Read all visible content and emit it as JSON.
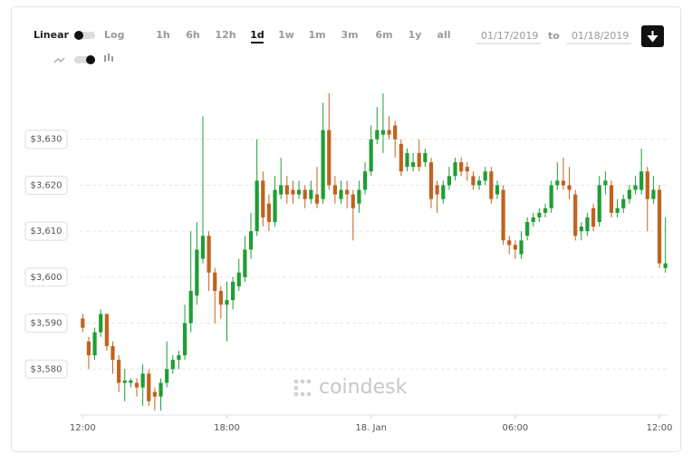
{
  "controls": {
    "scale_options": [
      "Linear",
      "Log"
    ],
    "ranges": [
      "1h",
      "6h",
      "12h",
      "1d",
      "1w",
      "1m",
      "3m",
      "6m",
      "1y",
      "all"
    ],
    "active_range": "1d",
    "date_from": "01/17/2019",
    "date_separator": "to",
    "date_to": "01/18/2019"
  },
  "watermark": "coindesk",
  "chart_data": {
    "type": "candlestick",
    "up_color": "#1e9e34",
    "down_color": "#c2621e",
    "grid": true,
    "xlim": [
      -0.5,
      97.5
    ],
    "ylim": [
      3570,
      3640
    ],
    "xticks": [
      {
        "value": 0,
        "label": "12:00"
      },
      {
        "value": 24,
        "label": "18:00"
      },
      {
        "value": 48,
        "label": "18. Jan"
      },
      {
        "value": 72,
        "label": "06:00"
      },
      {
        "value": 96,
        "label": "12:00"
      }
    ],
    "yticks": [
      {
        "value": 3580,
        "label": "$3,580"
      },
      {
        "value": 3590,
        "label": "$3,590"
      },
      {
        "value": 3600,
        "label": "$3,600"
      },
      {
        "value": 3610,
        "label": "$3,610"
      },
      {
        "value": 3620,
        "label": "$3,620"
      },
      {
        "value": 3630,
        "label": "$3,630"
      }
    ],
    "x": [
      0,
      1,
      2,
      3,
      4,
      5,
      6,
      7,
      8,
      9,
      10,
      11,
      12,
      13,
      14,
      15,
      16,
      17,
      18,
      19,
      20,
      21,
      22,
      23,
      24,
      25,
      26,
      27,
      28,
      29,
      30,
      31,
      32,
      33,
      34,
      35,
      36,
      37,
      38,
      39,
      40,
      41,
      42,
      43,
      44,
      45,
      46,
      47,
      48,
      49,
      50,
      51,
      52,
      53,
      54,
      55,
      56,
      57,
      58,
      59,
      60,
      61,
      62,
      63,
      64,
      65,
      66,
      67,
      68,
      69,
      70,
      71,
      72,
      73,
      74,
      75,
      76,
      77,
      78,
      79,
      80,
      81,
      82,
      83,
      84,
      85,
      86,
      87,
      88,
      89,
      90,
      91,
      92,
      93,
      94,
      95,
      96,
      97
    ],
    "open": [
      3591,
      3586,
      3583,
      3588,
      3592,
      3585,
      3582,
      3577,
      3577,
      3577,
      3576,
      3579,
      3575,
      3574,
      3577,
      3580,
      3582,
      3583,
      3590,
      3596,
      3604,
      3609,
      3601,
      3597,
      3594,
      3595,
      3598,
      3600,
      3606,
      3610,
      3621,
      3616,
      3612,
      3618,
      3620,
      3619,
      3618,
      3619,
      3617,
      3618,
      3617,
      3632,
      3620,
      3617,
      3619,
      3618,
      3616,
      3619,
      3623,
      3630,
      3631,
      3632,
      3633,
      3629,
      3624,
      3624,
      3627,
      3625,
      3625,
      3620,
      3617,
      3620,
      3622,
      3625,
      3624,
      3622,
      3620,
      3621,
      3623,
      3618,
      3619,
      3608,
      3607,
      3605,
      3609,
      3612,
      3613,
      3614,
      3615,
      3620,
      3621,
      3620,
      3618,
      3610,
      3610,
      3615,
      3612,
      3620,
      3620,
      3614,
      3615,
      3617,
      3619,
      3619,
      3623,
      3617,
      3619,
      3602
    ],
    "high": [
      3592,
      3587,
      3589,
      3593,
      3592,
      3586,
      3583,
      3580,
      3578,
      3578,
      3581,
      3580,
      3576,
      3578,
      3586,
      3583,
      3584,
      3594,
      3610,
      3612,
      3635,
      3610,
      3602,
      3598,
      3599,
      3600,
      3604,
      3609,
      3614,
      3630,
      3623,
      3618,
      3622,
      3626,
      3622,
      3621,
      3621,
      3620,
      3621,
      3624,
      3638,
      3640,
      3622,
      3621,
      3621,
      3619,
      3621,
      3625,
      3633,
      3637,
      3640,
      3635,
      3634,
      3630,
      3628,
      3627,
      3630,
      3628,
      3626,
      3621,
      3621,
      3624,
      3626,
      3626,
      3625,
      3623,
      3622,
      3624,
      3624,
      3621,
      3620,
      3609,
      3608,
      3610,
      3613,
      3614,
      3615,
      3616,
      3621,
      3625,
      3626,
      3624,
      3619,
      3612,
      3614,
      3616,
      3622,
      3623,
      3621,
      3617,
      3618,
      3620,
      3622,
      3628,
      3624,
      3622,
      3620,
      3613
    ],
    "low": [
      3588,
      3580,
      3582,
      3587,
      3584,
      3579,
      3575,
      3573,
      3576,
      3574,
      3572,
      3572,
      3571,
      3571,
      3576,
      3579,
      3580,
      3582,
      3588,
      3594,
      3603,
      3597,
      3590,
      3591,
      3586,
      3593,
      3597,
      3599,
      3604,
      3609,
      3611,
      3610,
      3611,
      3617,
      3616,
      3616,
      3617,
      3615,
      3616,
      3615,
      3616,
      3619,
      3616,
      3616,
      3615,
      3608,
      3614,
      3618,
      3622,
      3629,
      3627,
      3630,
      3626,
      3622,
      3623,
      3623,
      3623,
      3624,
      3615,
      3614,
      3616,
      3619,
      3621,
      3622,
      3621,
      3619,
      3619,
      3620,
      3616,
      3617,
      3607,
      3605,
      3604,
      3604,
      3608,
      3611,
      3612,
      3613,
      3614,
      3619,
      3619,
      3617,
      3608,
      3608,
      3609,
      3610,
      3611,
      3618,
      3613,
      3613,
      3614,
      3616,
      3618,
      3618,
      3610,
      3616,
      3602,
      3601
    ],
    "close": [
      3589,
      3583,
      3588,
      3592,
      3585,
      3582,
      3577,
      3577.5,
      3577.5,
      3576,
      3579,
      3573,
      3574,
      3577,
      3580,
      3582,
      3583,
      3590,
      3597,
      3606,
      3609,
      3601,
      3597,
      3594,
      3595,
      3599,
      3601,
      3606,
      3610,
      3621,
      3613,
      3612,
      3619,
      3620,
      3618,
      3618,
      3619,
      3617,
      3619,
      3616,
      3632,
      3620,
      3618,
      3619,
      3618,
      3615,
      3619,
      3623,
      3630,
      3632,
      3632,
      3631,
      3630,
      3623,
      3627,
      3625,
      3624,
      3627,
      3617,
      3618,
      3620,
      3622,
      3625,
      3623,
      3623,
      3620,
      3621,
      3623,
      3617,
      3620,
      3608,
      3607,
      3606,
      3608,
      3612,
      3613,
      3614,
      3615,
      3620,
      3621,
      3620,
      3619,
      3609,
      3611,
      3613,
      3611,
      3620,
      3621,
      3614,
      3615,
      3617,
      3619,
      3620,
      3623,
      3617,
      3619,
      3603,
      3603
    ]
  }
}
